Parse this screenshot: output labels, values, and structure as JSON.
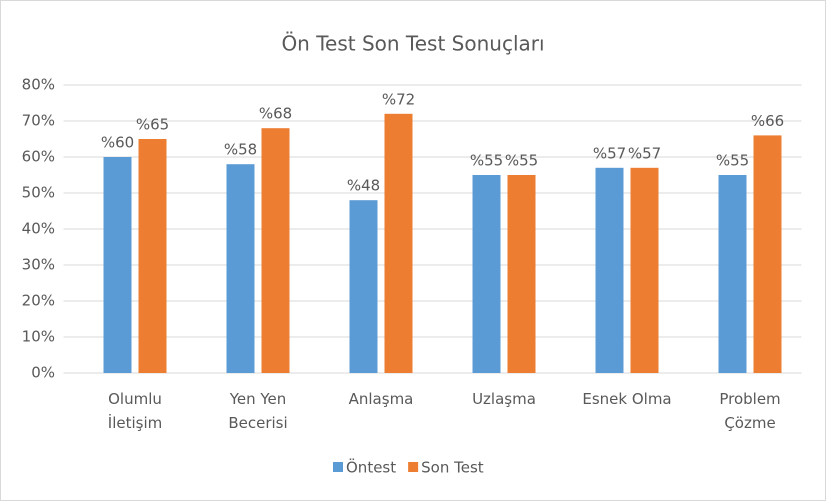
{
  "chart_data": {
    "type": "bar",
    "title": "Ön Test Son Test Sonuçları",
    "categories": [
      "Olumlu\nİletişim",
      "Yen Yen\nBecerisi",
      "Anlaşma",
      "Uzlaşma",
      "Esnek Olma",
      "Problem\nÇözme"
    ],
    "series": [
      {
        "name": "Öntest",
        "color": "#5b9bd5",
        "values": [
          60,
          58,
          48,
          55,
          57,
          55
        ],
        "value_labels": [
          "%60",
          "%58",
          "%48",
          "%55",
          "%57",
          "%55"
        ]
      },
      {
        "name": "Son Test",
        "color": "#ed7d31",
        "values": [
          65,
          68,
          72,
          55,
          57,
          66
        ],
        "value_labels": [
          "%65",
          "%68",
          "%72",
          "%55",
          "%57",
          "%66"
        ]
      }
    ],
    "ylim": [
      0,
      80
    ],
    "yticks": [
      {
        "value": 0,
        "label": "0%"
      },
      {
        "value": 10,
        "label": "10%"
      },
      {
        "value": 20,
        "label": "20%"
      },
      {
        "value": 30,
        "label": "30%"
      },
      {
        "value": 40,
        "label": "40%"
      },
      {
        "value": 50,
        "label": "50%"
      },
      {
        "value": 60,
        "label": "60%"
      },
      {
        "value": 70,
        "label": "70%"
      },
      {
        "value": 80,
        "label": "80%"
      }
    ],
    "grid": true,
    "legend": "bottom"
  }
}
